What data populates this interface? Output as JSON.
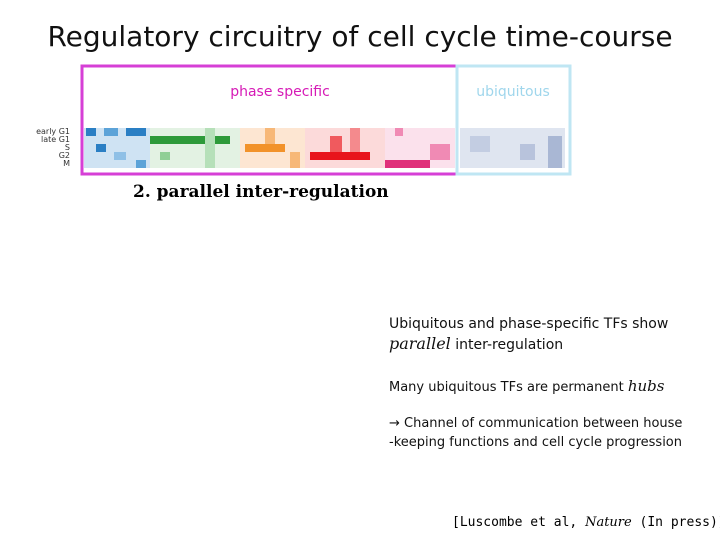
{
  "title": "Regulatory circuitry of cell cycle time-course",
  "panel": {
    "phase_label": "phase specific",
    "ubiquitous_label": "ubiquitous",
    "row_labels": [
      "early G1",
      "late G1",
      "S",
      "G2",
      "M"
    ]
  },
  "heading": "2. parallel inter-regulation",
  "notes": [
    {
      "segments": [
        "Ubiquitous and phase-specific TFs show"
      ]
    },
    {
      "segments": [
        "parallel",
        " inter-regulation"
      ]
    },
    {
      "segments": [
        "Many ubiquitous TFs are permanent ",
        "hubs"
      ]
    },
    {
      "segments": [
        "→ Channel of communication between house"
      ]
    },
    {
      "segments": [
        "-keeping functions and cell cycle progression"
      ]
    }
  ],
  "citation": {
    "segments": [
      "[Luscombe et al, ",
      "Nature",
      " (In press)]"
    ]
  }
}
